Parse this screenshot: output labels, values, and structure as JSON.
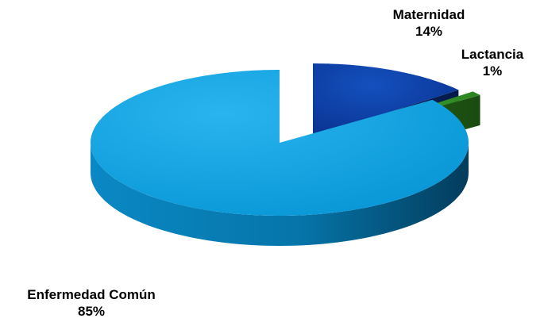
{
  "chart_data": {
    "type": "pie",
    "title": "",
    "slices": [
      {
        "label": "Enfermedad Común",
        "value": 85,
        "value_label": "85%",
        "color": "#0AA0DF"
      },
      {
        "label": "Maternidad",
        "value": 14,
        "value_label": "14%",
        "color": "#0A3FA6"
      },
      {
        "label": "Lactancia",
        "value": 1,
        "value_label": "1%",
        "color": "#2E8A22"
      }
    ],
    "exploded": [
      "Maternidad",
      "Lactancia"
    ],
    "style": "3d",
    "legend": "none"
  }
}
